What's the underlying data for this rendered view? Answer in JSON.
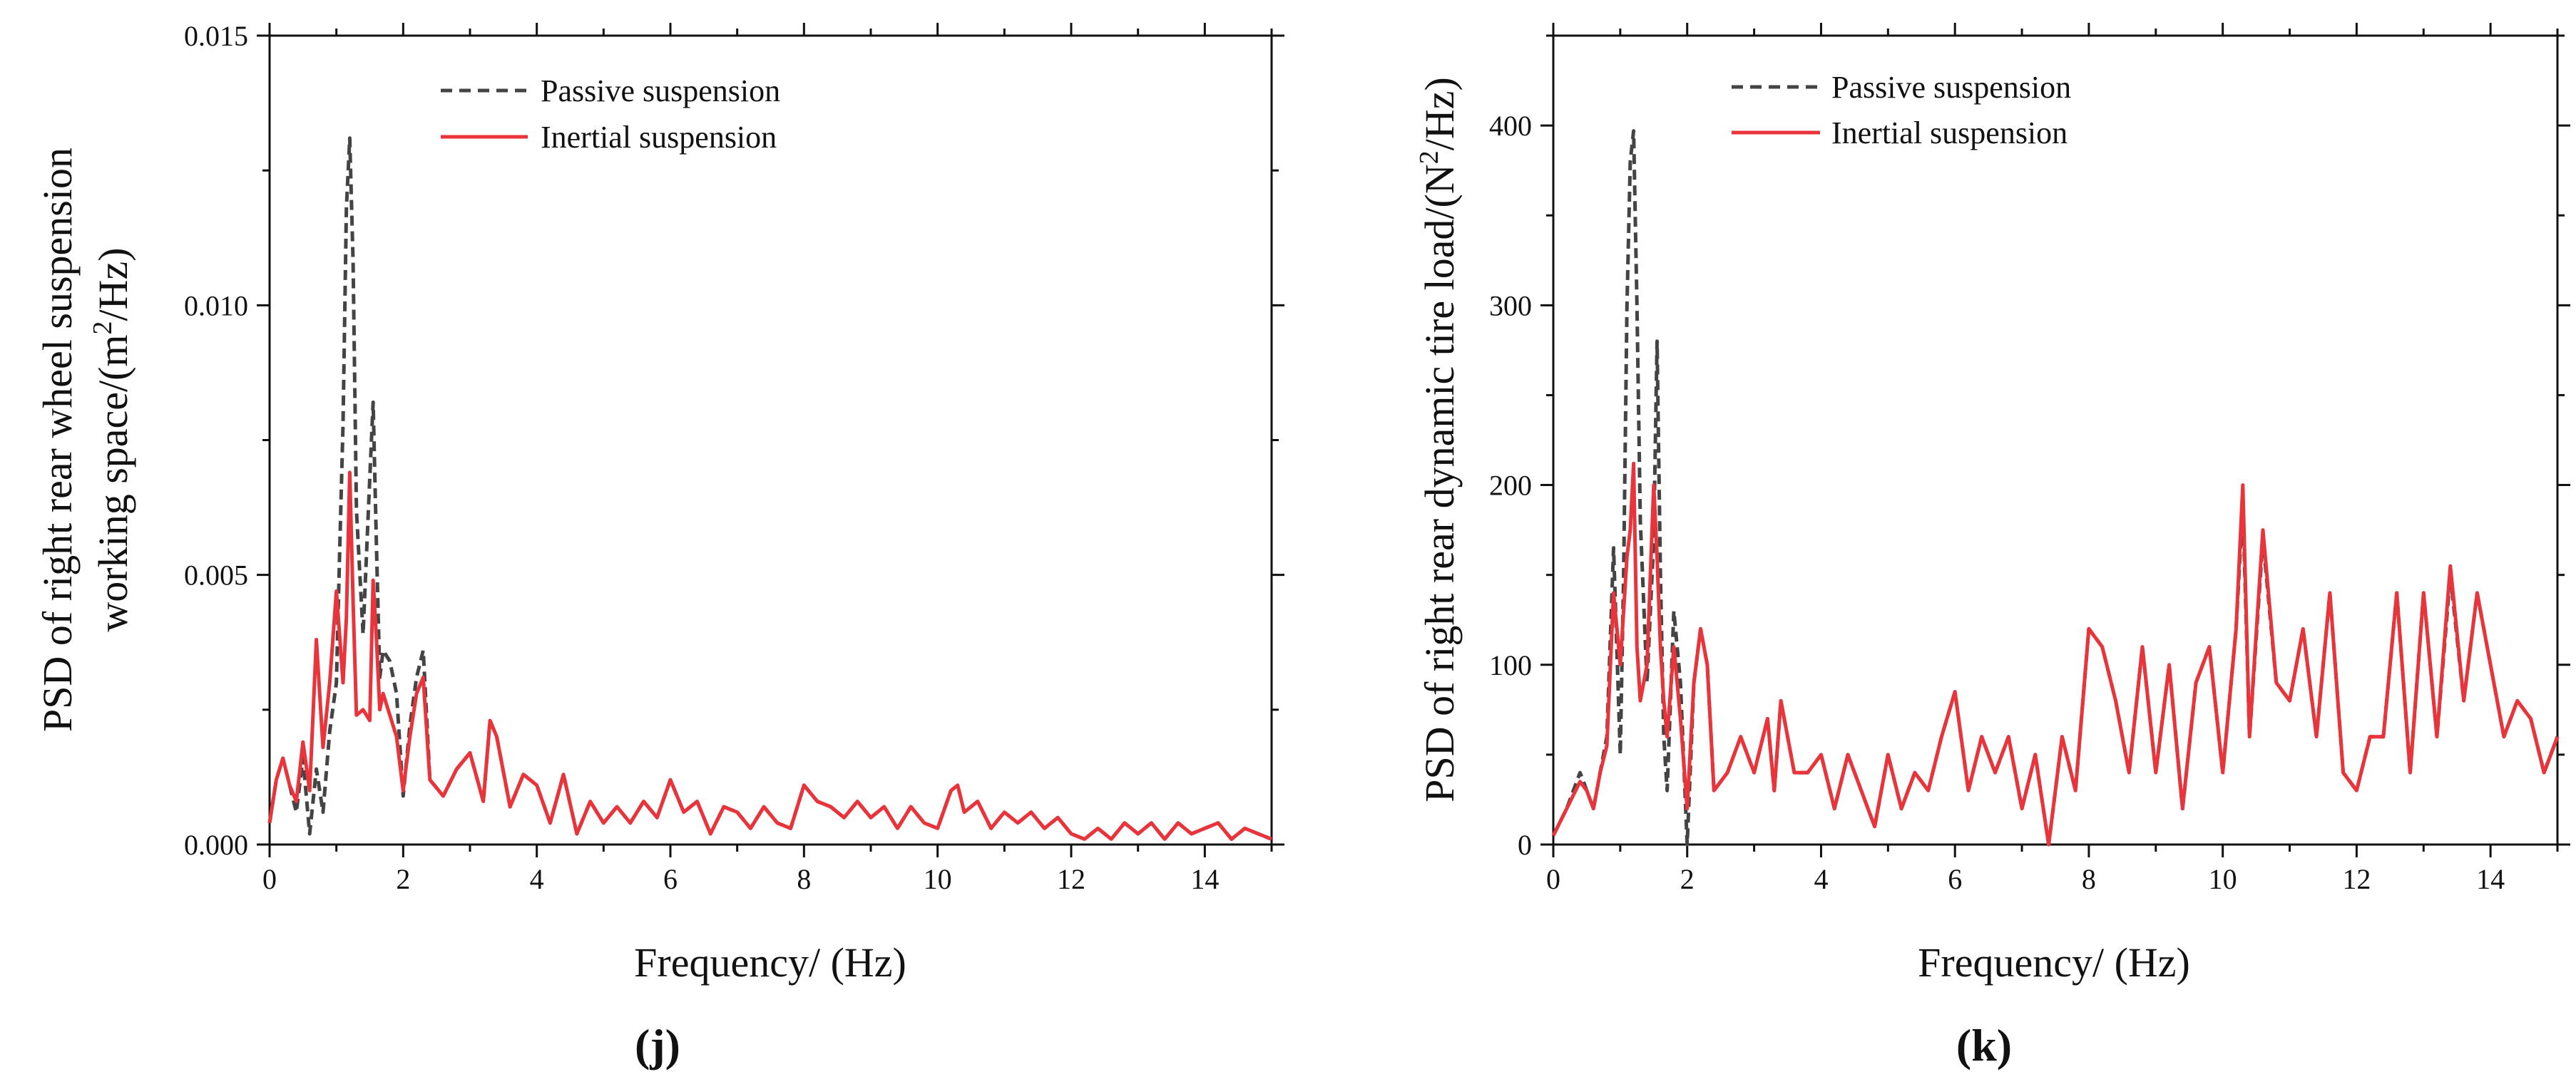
{
  "chart_data": [
    {
      "type": "line",
      "panel_label": "(j)",
      "title": "",
      "xlabel": "Frequency/ (Hz)",
      "ylabel_line1": "PSD of right rear wheel suspension",
      "ylabel_line2_prefix": "working space/(m",
      "ylabel_line2_sup": "2",
      "ylabel_line2_suffix": "/Hz)",
      "xlim": [
        0,
        15
      ],
      "ylim": [
        0,
        0.015
      ],
      "xticks": [
        0,
        2,
        4,
        6,
        8,
        10,
        12,
        14
      ],
      "xtick_labels": [
        "0",
        "2",
        "4",
        "6",
        "8",
        "10",
        "12",
        "14"
      ],
      "yticks": [
        0,
        0.005,
        0.01,
        0.015
      ],
      "ytick_labels": [
        "0.000",
        "0.005",
        "0.010",
        "0.015"
      ],
      "legend_position": "top-center",
      "series": [
        {
          "name": "Passive suspension",
          "color": "#444444",
          "style": "dashed",
          "x": [
            0,
            0.1,
            0.2,
            0.3,
            0.4,
            0.5,
            0.6,
            0.65,
            0.7,
            0.8,
            0.9,
            1.0,
            1.05,
            1.1,
            1.15,
            1.2,
            1.25,
            1.3,
            1.4,
            1.5,
            1.55,
            1.6,
            1.65,
            1.7,
            1.8,
            1.9,
            2.0,
            2.1,
            2.2,
            2.3,
            2.4,
            2.6,
            2.8,
            3.0,
            3.2,
            3.3,
            3.4,
            3.6,
            3.8,
            4.0,
            4.2,
            4.4,
            4.6,
            4.8,
            5.0,
            5.2,
            5.4,
            5.6,
            5.8,
            6.0,
            6.2,
            6.4,
            6.6,
            6.8,
            7.0,
            7.2,
            7.4,
            7.6,
            7.8,
            8.0,
            8.2,
            8.4,
            8.6,
            8.8,
            9.0,
            9.2,
            9.4,
            9.6,
            9.8,
            10.0,
            10.2,
            10.3,
            10.4,
            10.6,
            10.8,
            11.0,
            11.2,
            11.4,
            11.6,
            11.8,
            12.0,
            12.2,
            12.4,
            12.6,
            12.8,
            13.0,
            13.2,
            13.4,
            13.6,
            13.8,
            14.0,
            14.2,
            14.4,
            14.6,
            14.8,
            15.0
          ],
          "y": [
            0.0004,
            0.0012,
            0.0016,
            0.0011,
            0.0006,
            0.0016,
            0.0002,
            0.0008,
            0.0014,
            0.0006,
            0.0021,
            0.003,
            0.0055,
            0.0078,
            0.0118,
            0.0131,
            0.0108,
            0.0062,
            0.0039,
            0.0068,
            0.0082,
            0.0055,
            0.0031,
            0.0036,
            0.0034,
            0.0028,
            0.0009,
            0.0022,
            0.0031,
            0.0036,
            0.0012,
            0.0009,
            0.0014,
            0.0017,
            0.0008,
            0.0023,
            0.002,
            0.0007,
            0.0013,
            0.0011,
            0.0004,
            0.0013,
            0.0002,
            0.0008,
            0.0004,
            0.0007,
            0.0004,
            0.0008,
            0.0005,
            0.0012,
            0.0006,
            0.0008,
            0.0002,
            0.0007,
            0.0006,
            0.0003,
            0.0007,
            0.0004,
            0.0003,
            0.0011,
            0.0008,
            0.0007,
            0.0005,
            0.0008,
            0.0005,
            0.0007,
            0.0003,
            0.0007,
            0.0004,
            0.0003,
            0.001,
            0.0011,
            0.0006,
            0.0008,
            0.0003,
            0.0006,
            0.0004,
            0.0006,
            0.0003,
            0.0005,
            0.0002,
            0.0001,
            0.0003,
            0.0001,
            0.0004,
            0.0002,
            0.0004,
            0.0001,
            0.0004,
            0.0002,
            0.0003,
            0.0004,
            0.0001,
            0.0003,
            0.0002,
            0.0001
          ]
        },
        {
          "name": "Inertial suspension",
          "color": "#e8343a",
          "style": "solid",
          "x": [
            0,
            0.1,
            0.2,
            0.3,
            0.4,
            0.5,
            0.6,
            0.7,
            0.8,
            0.9,
            1.0,
            1.1,
            1.15,
            1.2,
            1.25,
            1.3,
            1.4,
            1.5,
            1.55,
            1.6,
            1.65,
            1.7,
            1.8,
            1.9,
            2.0,
            2.1,
            2.2,
            2.3,
            2.4,
            2.6,
            2.8,
            3.0,
            3.2,
            3.3,
            3.4,
            3.6,
            3.8,
            4.0,
            4.2,
            4.4,
            4.6,
            4.8,
            5.0,
            5.2,
            5.4,
            5.6,
            5.8,
            6.0,
            6.2,
            6.4,
            6.6,
            6.8,
            7.0,
            7.2,
            7.4,
            7.6,
            7.8,
            8.0,
            8.2,
            8.4,
            8.6,
            8.8,
            9.0,
            9.2,
            9.4,
            9.6,
            9.8,
            10.0,
            10.2,
            10.3,
            10.4,
            10.6,
            10.8,
            11.0,
            11.2,
            11.4,
            11.6,
            11.8,
            12.0,
            12.2,
            12.4,
            12.6,
            12.8,
            13.0,
            13.2,
            13.4,
            13.6,
            13.8,
            14.0,
            14.2,
            14.4,
            14.6,
            14.8,
            15.0
          ],
          "y": [
            0.0004,
            0.0012,
            0.0016,
            0.0011,
            0.0008,
            0.0019,
            0.001,
            0.0038,
            0.0018,
            0.003,
            0.0047,
            0.003,
            0.0042,
            0.0069,
            0.0045,
            0.0024,
            0.0025,
            0.0023,
            0.0049,
            0.0038,
            0.0025,
            0.0028,
            0.0024,
            0.002,
            0.001,
            0.002,
            0.0028,
            0.0031,
            0.0012,
            0.0009,
            0.0014,
            0.0017,
            0.0008,
            0.0023,
            0.002,
            0.0007,
            0.0013,
            0.0011,
            0.0004,
            0.0013,
            0.0002,
            0.0008,
            0.0004,
            0.0007,
            0.0004,
            0.0008,
            0.0005,
            0.0012,
            0.0006,
            0.0008,
            0.0002,
            0.0007,
            0.0006,
            0.0003,
            0.0007,
            0.0004,
            0.0003,
            0.0011,
            0.0008,
            0.0007,
            0.0005,
            0.0008,
            0.0005,
            0.0007,
            0.0003,
            0.0007,
            0.0004,
            0.0003,
            0.001,
            0.0011,
            0.0006,
            0.0008,
            0.0003,
            0.0006,
            0.0004,
            0.0006,
            0.0003,
            0.0005,
            0.0002,
            0.0001,
            0.0003,
            0.0001,
            0.0004,
            0.0002,
            0.0004,
            0.0001,
            0.0004,
            0.0002,
            0.0003,
            0.0004,
            0.0001,
            0.0003,
            0.0002,
            0.0001
          ]
        }
      ]
    },
    {
      "type": "line",
      "panel_label": "(k)",
      "title": "",
      "xlabel": "Frequency/ (Hz)",
      "ylabel_prefix": "PSD of right rear dynamic tire load/(N",
      "ylabel_sup": "2",
      "ylabel_suffix": "/Hz)",
      "xlim": [
        0,
        15
      ],
      "ylim": [
        0,
        450
      ],
      "xticks": [
        0,
        2,
        4,
        6,
        8,
        10,
        12,
        14
      ],
      "xtick_labels": [
        "0",
        "2",
        "4",
        "6",
        "8",
        "10",
        "12",
        "14"
      ],
      "yticks": [
        0,
        100,
        200,
        300,
        400
      ],
      "ytick_labels": [
        "0",
        "100",
        "200",
        "300",
        "400"
      ],
      "legend_position": "top-center",
      "series": [
        {
          "name": "Passive suspension",
          "color": "#444444",
          "style": "dashed",
          "x": [
            0,
            0.2,
            0.4,
            0.5,
            0.6,
            0.7,
            0.8,
            0.9,
            1.0,
            1.05,
            1.1,
            1.15,
            1.2,
            1.25,
            1.3,
            1.4,
            1.5,
            1.55,
            1.6,
            1.65,
            1.7,
            1.8,
            1.9,
            2.0,
            2.1,
            2.2,
            2.3,
            2.4,
            2.6,
            2.8,
            3.0,
            3.2,
            3.3,
            3.4,
            3.6,
            3.8,
            4.0,
            4.2,
            4.4,
            4.6,
            4.8,
            5.0,
            5.2,
            5.4,
            5.6,
            5.8,
            6.0,
            6.2,
            6.4,
            6.6,
            6.8,
            7.0,
            7.2,
            7.4,
            7.6,
            7.8,
            8.0,
            8.2,
            8.4,
            8.6,
            8.8,
            9.0,
            9.2,
            9.4,
            9.6,
            9.8,
            10.0,
            10.2,
            10.3,
            10.4,
            10.6,
            10.8,
            11.0,
            11.2,
            11.4,
            11.6,
            11.8,
            12.0,
            12.2,
            12.4,
            12.6,
            12.8,
            13.0,
            13.2,
            13.4,
            13.6,
            13.8,
            14.0,
            14.2,
            14.4,
            14.6,
            14.8,
            15.0
          ],
          "y": [
            5,
            20,
            40,
            30,
            20,
            40,
            60,
            165,
            50,
            150,
            300,
            380,
            397,
            300,
            180,
            90,
            170,
            280,
            150,
            60,
            30,
            130,
            90,
            0,
            90,
            120,
            100,
            30,
            40,
            60,
            40,
            70,
            30,
            80,
            40,
            40,
            50,
            20,
            50,
            30,
            10,
            50,
            20,
            40,
            30,
            60,
            85,
            30,
            60,
            40,
            60,
            20,
            50,
            0,
            60,
            30,
            120,
            110,
            80,
            40,
            110,
            40,
            100,
            20,
            90,
            110,
            40,
            120,
            190,
            60,
            170,
            90,
            80,
            120,
            60,
            140,
            40,
            30,
            60,
            60,
            140,
            40,
            140,
            60,
            150,
            80,
            140,
            100,
            60,
            80,
            70,
            40,
            60
          ]
        },
        {
          "name": "Inertial suspension",
          "color": "#e8343a",
          "style": "solid",
          "x": [
            0,
            0.2,
            0.4,
            0.5,
            0.6,
            0.7,
            0.8,
            0.9,
            1.0,
            1.1,
            1.15,
            1.2,
            1.25,
            1.3,
            1.4,
            1.5,
            1.55,
            1.6,
            1.65,
            1.7,
            1.8,
            1.9,
            2.0,
            2.1,
            2.2,
            2.3,
            2.4,
            2.6,
            2.8,
            3.0,
            3.2,
            3.3,
            3.4,
            3.6,
            3.8,
            4.0,
            4.2,
            4.4,
            4.6,
            4.8,
            5.0,
            5.2,
            5.4,
            5.6,
            5.8,
            6.0,
            6.2,
            6.4,
            6.6,
            6.8,
            7.0,
            7.2,
            7.4,
            7.6,
            7.8,
            8.0,
            8.2,
            8.4,
            8.6,
            8.8,
            9.0,
            9.2,
            9.4,
            9.6,
            9.8,
            10.0,
            10.2,
            10.3,
            10.4,
            10.6,
            10.8,
            11.0,
            11.2,
            11.4,
            11.6,
            11.8,
            12.0,
            12.2,
            12.4,
            12.6,
            12.8,
            13.0,
            13.2,
            13.4,
            13.6,
            13.8,
            14.0,
            14.2,
            14.4,
            14.6,
            14.8,
            15.0
          ],
          "y": [
            5,
            20,
            35,
            30,
            20,
            40,
            55,
            140,
            100,
            160,
            175,
            212,
            110,
            80,
            100,
            200,
            160,
            110,
            80,
            60,
            110,
            70,
            20,
            90,
            120,
            100,
            30,
            40,
            60,
            40,
            70,
            30,
            80,
            40,
            40,
            50,
            20,
            50,
            30,
            10,
            50,
            20,
            40,
            30,
            60,
            85,
            30,
            60,
            40,
            60,
            20,
            50,
            0,
            60,
            30,
            120,
            110,
            80,
            40,
            110,
            40,
            100,
            20,
            90,
            110,
            40,
            120,
            200,
            60,
            175,
            90,
            80,
            120,
            60,
            140,
            40,
            30,
            60,
            60,
            140,
            40,
            140,
            60,
            155,
            80,
            140,
            100,
            60,
            80,
            70,
            40,
            60
          ]
        }
      ]
    }
  ]
}
